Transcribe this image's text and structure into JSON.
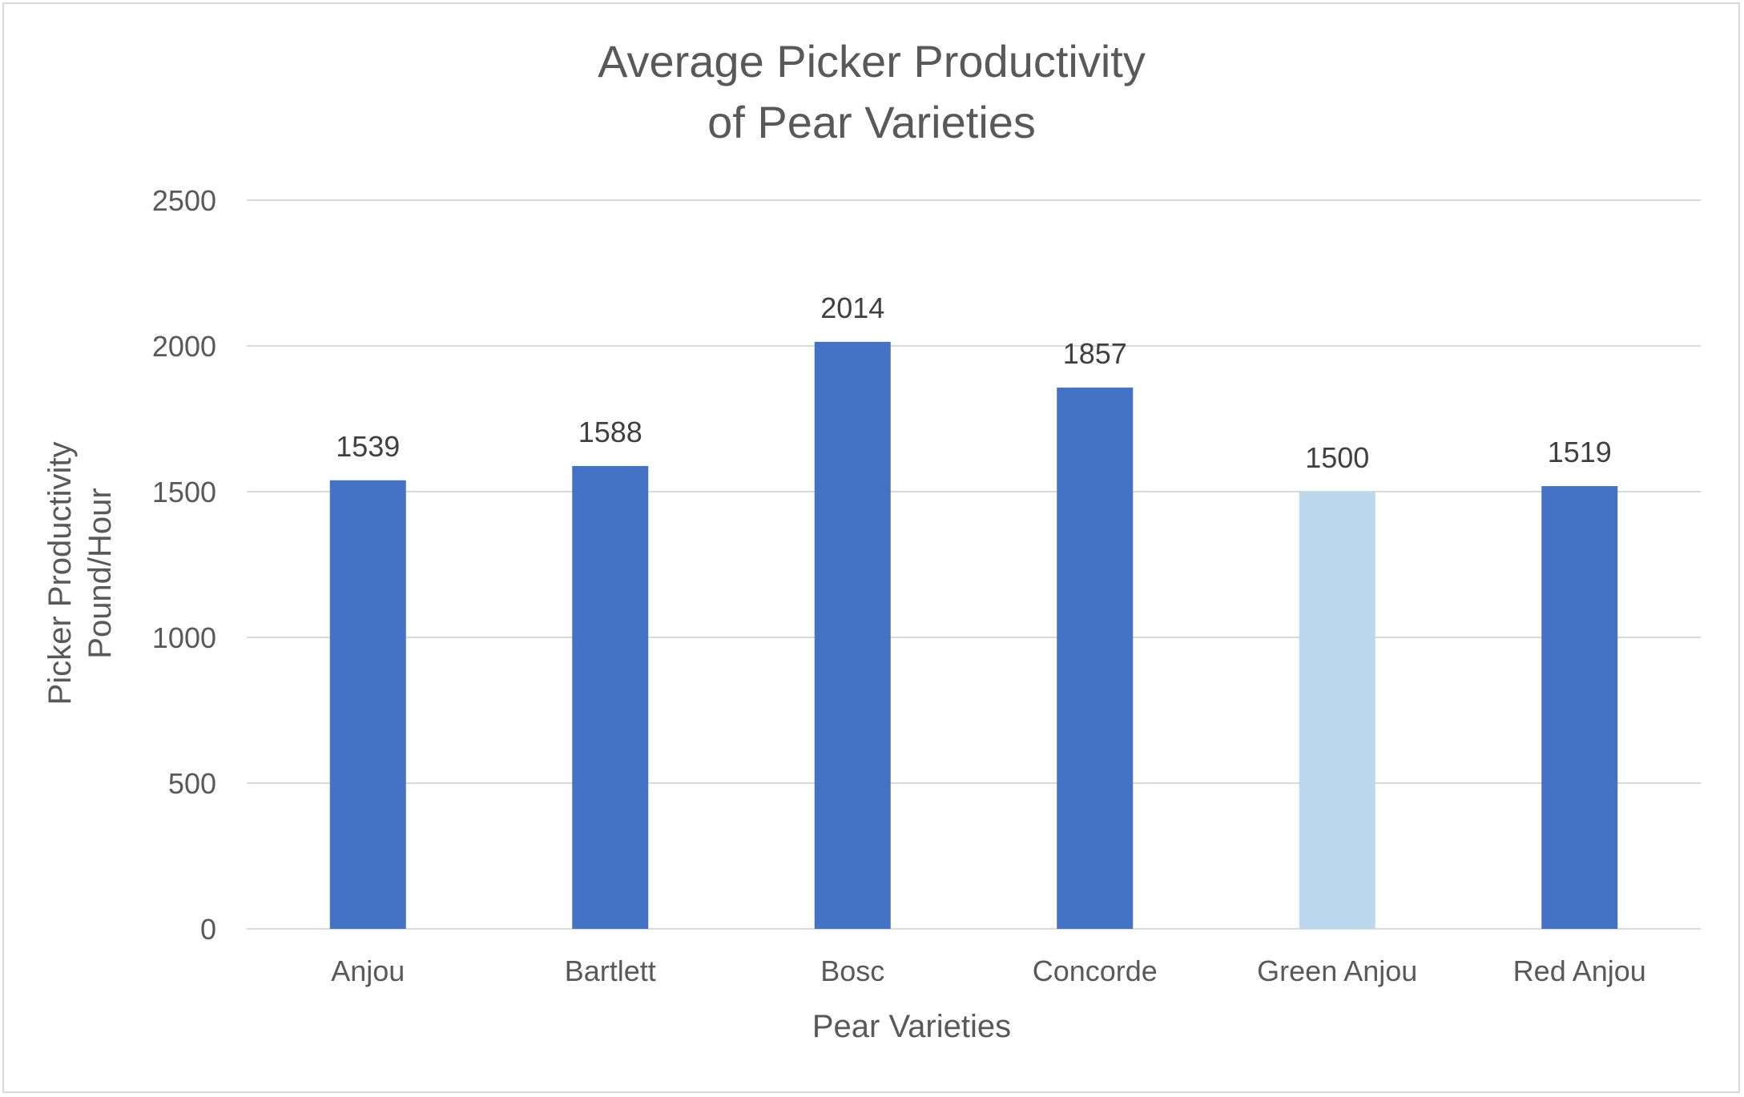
{
  "chart_data": {
    "type": "bar",
    "title_lines": [
      "Average Picker Productivity",
      "of Pear Varieties"
    ],
    "xlabel": "Pear Varieties",
    "ylabel_lines": [
      "Picker Productivity",
      "Pound/Hour"
    ],
    "categories": [
      "Anjou",
      "Bartlett",
      "Bosc",
      "Concorde",
      "Green Anjou",
      "Red Anjou"
    ],
    "values": [
      1539,
      1588,
      2014,
      1857,
      1500,
      1519
    ],
    "bar_colors": [
      "#4472c4",
      "#4472c4",
      "#4472c4",
      "#4472c4",
      "#bdd7ee",
      "#4472c4"
    ],
    "ylim": [
      0,
      2500
    ],
    "yticks": [
      0,
      500,
      1000,
      1500,
      2000,
      2500
    ],
    "grid": true,
    "legend": "none",
    "data_labels": true
  },
  "colors": {
    "primary_bar": "#4472c4",
    "highlight_bar": "#bdd7ee",
    "gridline": "#d9d9d9",
    "text": "#595959"
  }
}
